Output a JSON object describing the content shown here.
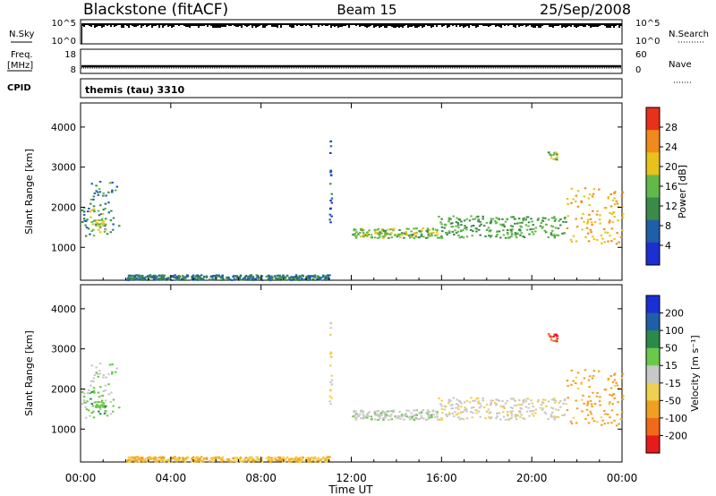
{
  "header": {
    "station": "Blackstone (fitACF)",
    "beam": "Beam 15",
    "date": "25/Sep/2008"
  },
  "nsky": {
    "label": "N.Sky",
    "ticks_left": [
      "10^5",
      "10^0"
    ],
    "ticks_right": [
      "10^5",
      "10^0"
    ],
    "right_label": "N.Search"
  },
  "freq": {
    "label_line1": "Freq.",
    "label_line2": "[MHz]",
    "ticks_left": [
      "18",
      "8"
    ],
    "ticks_right": [
      "60",
      "0"
    ],
    "right_label": "Nave"
  },
  "cpid": {
    "label": "CPID",
    "text": "themis (tau) 3310"
  },
  "power_panel": {
    "ylabel": "Slant Range [km]",
    "yticks": [
      "1000",
      "2000",
      "3000",
      "4000"
    ],
    "colorbar_label": "Power [dB]",
    "colorbar_ticks": [
      "4",
      "8",
      "12",
      "16",
      "20",
      "24",
      "28"
    ],
    "colors": [
      "#1c2fd4",
      "#1f5fa8",
      "#3b8a4a",
      "#63b84a",
      "#e8c21a",
      "#f08a1a",
      "#e8301a"
    ]
  },
  "velocity_panel": {
    "ylabel": "Slant Range [km]",
    "yticks": [
      "1000",
      "2000",
      "3000",
      "4000"
    ],
    "colorbar_label": "Velocity [m s⁻¹]",
    "colorbar_ticks": [
      "-200",
      "-100",
      "-50",
      "-15",
      "15",
      "50",
      "100",
      "200"
    ],
    "colors": [
      "#e81a1a",
      "#f06a1a",
      "#f0a020",
      "#f0d050",
      "#c8c8c8",
      "#6ac84a",
      "#2a8a4a",
      "#1f5fa8",
      "#1c2fd4"
    ]
  },
  "xaxis": {
    "label": "Time UT",
    "ticks": [
      "00:00",
      "04:00",
      "08:00",
      "12:00",
      "16:00",
      "20:00",
      "00:00"
    ]
  },
  "chart_data": {
    "type": "heatmap",
    "title": "Blackstone (fitACF) Beam 15 25/Sep/2008",
    "xlabel": "Time UT",
    "ylabel": "Slant Range [km]",
    "xlim_hours": [
      0,
      24
    ],
    "ylim_km": [
      180,
      4600
    ],
    "scatter_regions": [
      {
        "t_start": 0.0,
        "t_end": 1.7,
        "range_lo": 1300,
        "range_hi": 2700,
        "power_db": 9,
        "velocity": 10
      },
      {
        "t_start": 0.3,
        "t_end": 1.1,
        "range_lo": 1400,
        "range_hi": 2000,
        "power_db": 16,
        "velocity": 40
      },
      {
        "t_start": 2.0,
        "t_end": 11.0,
        "range_lo": 200,
        "range_hi": 330,
        "power_db": 8,
        "velocity": -50
      },
      {
        "t_start": 11.0,
        "t_end": 11.1,
        "range_lo": 1500,
        "range_hi": 3700,
        "power_db": 5,
        "velocity": -20
      },
      {
        "t_start": 12.0,
        "t_end": 15.8,
        "range_lo": 1250,
        "range_hi": 1500,
        "power_db": 14,
        "velocity": 5
      },
      {
        "t_start": 15.8,
        "t_end": 21.5,
        "range_lo": 1250,
        "range_hi": 1800,
        "power_db": 12,
        "velocity": -10
      },
      {
        "t_start": 21.5,
        "t_end": 24.0,
        "range_lo": 1100,
        "range_hi": 2500,
        "power_db": 20,
        "velocity": -60
      },
      {
        "t_start": 20.7,
        "t_end": 21.1,
        "range_lo": 3200,
        "range_hi": 3400,
        "power_db": 14,
        "velocity": -200
      }
    ]
  }
}
